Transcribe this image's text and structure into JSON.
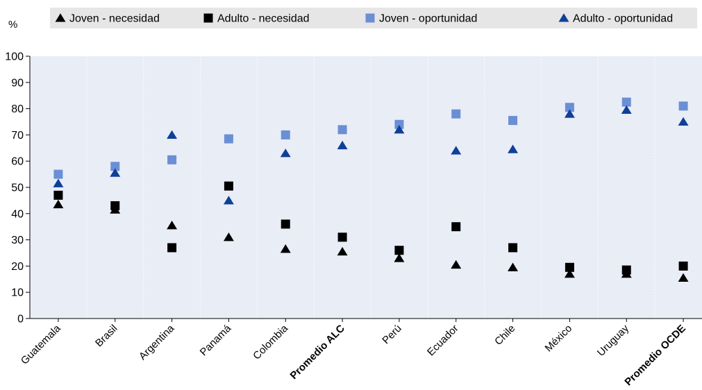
{
  "chart_data": {
    "type": "scatter",
    "y_unit_label": "%",
    "ylim": [
      0,
      100
    ],
    "yticks": [
      0,
      10,
      20,
      30,
      40,
      50,
      60,
      70,
      80,
      90,
      100
    ],
    "grid": "vertical dotted separators, no horizontal grid",
    "legend_position": "top",
    "categories": [
      "Guatemala",
      "Brasil",
      "Argentina",
      "Panamá",
      "Colombia",
      "Promedio ALC",
      "Perú",
      "Ecuador",
      "Chile",
      "México",
      "Uruguay",
      "Promedio OCDE"
    ],
    "bold_categories": [
      "Promedio ALC",
      "Promedio OCDE"
    ],
    "series": [
      {
        "name": "Joven - necesidad",
        "marker": "triangle",
        "color": "#000000",
        "values": [
          43.5,
          41.5,
          35.5,
          31,
          26.5,
          25.5,
          23,
          20.5,
          19.5,
          17,
          17,
          15.5
        ]
      },
      {
        "name": "Adulto - necesidad",
        "marker": "square",
        "color": "#000000",
        "values": [
          47,
          43,
          27,
          50.5,
          36,
          31,
          26,
          35,
          27,
          19.5,
          18.5,
          20
        ]
      },
      {
        "name": "Joven - oportunidad",
        "marker": "square",
        "color": "#6b8fd4",
        "values": [
          55,
          58,
          60.5,
          68.5,
          70,
          72,
          74,
          78,
          75.5,
          80.5,
          82.5,
          81
        ]
      },
      {
        "name": "Adulto - oportunidad",
        "marker": "triangle",
        "color": "#0f3f99",
        "values": [
          51.5,
          55.5,
          70,
          45,
          63,
          66,
          72,
          64,
          64.5,
          78,
          79.5,
          75
        ]
      }
    ]
  }
}
